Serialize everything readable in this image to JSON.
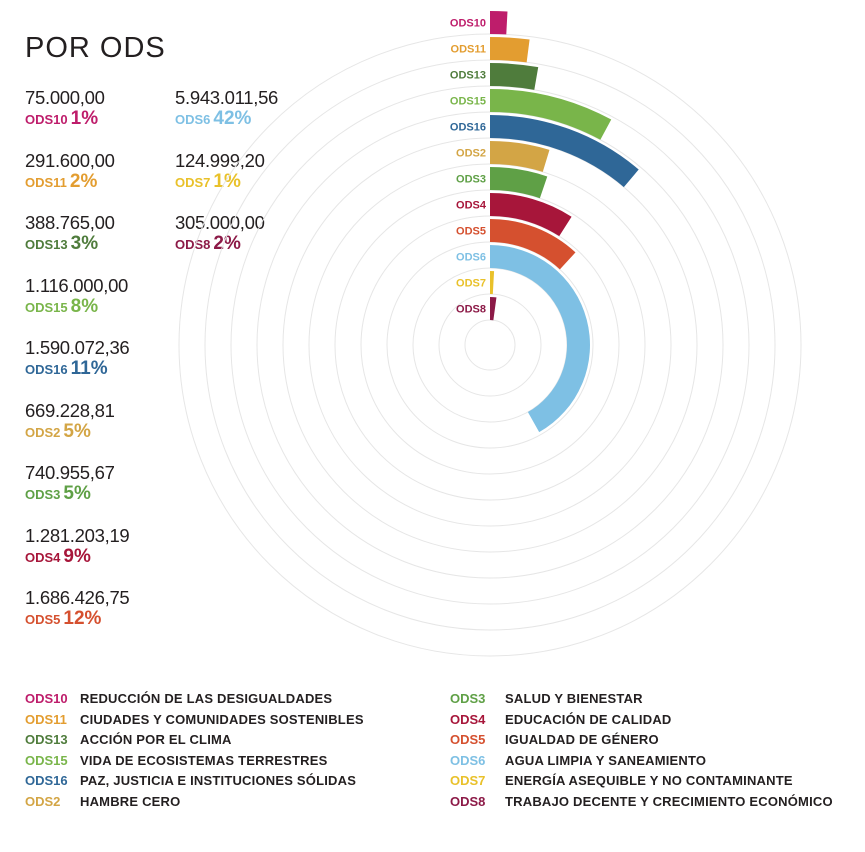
{
  "title": "POR ODS",
  "stats": [
    {
      "amount": "75.000,00",
      "code": "ODS10",
      "pct": "1%",
      "color": "#be1d6b"
    },
    {
      "amount": "291.600,00",
      "code": "ODS11",
      "pct": "2%",
      "color": "#e39d30"
    },
    {
      "amount": "388.765,00",
      "code": "ODS13",
      "pct": "3%",
      "color": "#4f7c3c"
    },
    {
      "amount": "1.116.000,00",
      "code": "ODS15",
      "pct": "8%",
      "color": "#79b54a"
    },
    {
      "amount": "1.590.072,36",
      "code": "ODS16",
      "pct": "11%",
      "color": "#2f6797"
    },
    {
      "amount": "669.228,81",
      "code": "ODS2",
      "pct": "5%",
      "color": "#d3a545"
    },
    {
      "amount": "740.955,67",
      "code": "ODS3",
      "pct": "5%",
      "color": "#5fa046"
    },
    {
      "amount": "1.281.203,19",
      "code": "ODS4",
      "pct": "9%",
      "color": "#a7163a"
    },
    {
      "amount": "1.686.426,75",
      "code": "ODS5",
      "pct": "12%",
      "color": "#d5502f"
    },
    {
      "amount": "5.943.011,56",
      "code": "ODS6",
      "pct": "42%",
      "color": "#7ec0e4"
    },
    {
      "amount": "124.999,20",
      "code": "ODS7",
      "pct": "1%",
      "color": "#e9c12a"
    },
    {
      "amount": "305.000,00",
      "code": "ODS8",
      "pct": "2%",
      "color": "#8c1a47"
    }
  ],
  "chart_data": {
    "type": "radial bar",
    "categories": [
      "ODS10",
      "ODS11",
      "ODS13",
      "ODS15",
      "ODS16",
      "ODS2",
      "ODS3",
      "ODS4",
      "ODS5",
      "ODS6",
      "ODS7",
      "ODS8"
    ],
    "values": [
      75000.0,
      291600.0,
      388765.0,
      1116000.0,
      1590072.36,
      669228.81,
      740955.67,
      1281203.19,
      1686426.75,
      5943011.56,
      124999.2,
      305000.0
    ],
    "percentages": [
      1,
      2,
      3,
      8,
      11,
      5,
      5,
      9,
      12,
      42,
      1,
      2
    ],
    "colors": [
      "#be1d6b",
      "#e39d30",
      "#4f7c3c",
      "#79b54a",
      "#2f6797",
      "#d3a545",
      "#5fa046",
      "#a7163a",
      "#d5502f",
      "#7ec0e4",
      "#e9c12a",
      "#8c1a47"
    ],
    "grid": true
  },
  "legend": {
    "left": [
      {
        "code": "ODS10",
        "label": "REDUCCIÓN DE LAS DESIGUALDADES",
        "color": "#be1d6b"
      },
      {
        "code": "ODS11",
        "label": "CIUDADES Y COMUNIDADES SOSTENIBLES",
        "color": "#e39d30"
      },
      {
        "code": "ODS13",
        "label": "ACCIÓN POR EL CLIMA",
        "color": "#4f7c3c"
      },
      {
        "code": "ODS15",
        "label": "VIDA DE ECOSISTEMAS TERRESTRES",
        "color": "#79b54a"
      },
      {
        "code": "ODS16",
        "label": "PAZ, JUSTICIA E INSTITUCIONES SÓLIDAS",
        "color": "#2f6797"
      },
      {
        "code": "ODS2",
        "label": "HAMBRE CERO",
        "color": "#d3a545"
      }
    ],
    "right": [
      {
        "code": "ODS3",
        "label": "SALUD Y BIENESTAR",
        "color": "#5fa046"
      },
      {
        "code": "ODS4",
        "label": "EDUCACIÓN DE CALIDAD",
        "color": "#a7163a"
      },
      {
        "code": "ODS5",
        "label": "IGUALDAD DE GÉNERO",
        "color": "#d5502f"
      },
      {
        "code": "ODS6",
        "label": "AGUA LIMPIA Y SANEAMIENTO",
        "color": "#7ec0e4"
      },
      {
        "code": "ODS7",
        "label": "ENERGÍA ASEQUIBLE Y NO CONTAMINANTE",
        "color": "#e9c12a"
      },
      {
        "code": "ODS8",
        "label": "TRABAJO DECENTE Y CRECIMIENTO ECONÓMICO",
        "color": "#8c1a47"
      }
    ]
  }
}
